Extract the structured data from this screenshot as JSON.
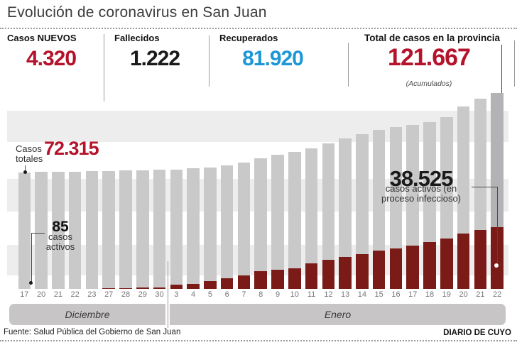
{
  "title": "Evolución de coronavirus en San Juan",
  "stats": [
    {
      "label": "Casos NUEVOS",
      "value": "4.320",
      "color": "#b5122b"
    },
    {
      "label": "Fallecidos",
      "value": "1.222",
      "color": "#1a1a1a"
    },
    {
      "label": "Recuperados",
      "value": "81.920",
      "color": "#1e97d6"
    },
    {
      "label": "Total de casos en la provincia",
      "value": "121.667",
      "note": "(Acumulados)",
      "color": "#b5122b"
    }
  ],
  "annotations": {
    "casos_totales": {
      "line1": "Casos",
      "line2": "totales",
      "value": "72.315"
    },
    "activos_first": {
      "value": "85",
      "line1": "casos",
      "line2": "activos"
    },
    "activos_last": {
      "value": "38.525",
      "line1": "casos activos (en",
      "line2": "proceso infeccioso)"
    }
  },
  "footer": {
    "source": "Fuente: Salud Pública del Gobierno de San Juan",
    "credit": "DIARIO DE CUYO"
  },
  "colors": {
    "accent_red": "#b5122b",
    "accent_blue": "#1e97d6",
    "bar_total": "#c9c9ca",
    "bar_total_highlight": "#b3b3b5",
    "bar_active": "#7b1b17",
    "stripe": "#ededee",
    "month_band": "#c7c5c5"
  },
  "chart_data": {
    "type": "bar",
    "title": "Evolución de coronavirus en San Juan",
    "x": [
      "17",
      "20",
      "21",
      "22",
      "23",
      "27",
      "28",
      "29",
      "30",
      "3",
      "4",
      "5",
      "6",
      "7",
      "8",
      "9",
      "10",
      "11",
      "12",
      "13",
      "14",
      "15",
      "16",
      "17",
      "18",
      "19",
      "20",
      "21",
      "22"
    ],
    "months": [
      {
        "label": "Diciembre",
        "start": 0,
        "count": 9
      },
      {
        "label": "Enero",
        "start": 9,
        "count": 20
      }
    ],
    "series": [
      {
        "name": "Casos totales",
        "values": [
          72315,
          72500,
          72650,
          72800,
          72950,
          73150,
          73350,
          73600,
          73850,
          74000,
          74700,
          75300,
          76700,
          78500,
          81100,
          83100,
          85000,
          87000,
          90400,
          93300,
          95800,
          98700,
          100300,
          101700,
          103600,
          106500,
          113100,
          117900,
          121667
        ]
      },
      {
        "name": "Casos activos (en proceso infeccioso)",
        "values": [
          85,
          100,
          120,
          150,
          200,
          400,
          500,
          700,
          800,
          2500,
          3200,
          4700,
          6400,
          8400,
          10800,
          12000,
          12800,
          15700,
          17900,
          19600,
          21600,
          23600,
          24900,
          27000,
          29100,
          31300,
          34300,
          36500,
          38525
        ]
      }
    ],
    "labeled_points": {
      "first_total": 72315,
      "first_active": 85,
      "last_total": 121667,
      "last_active": 38525
    },
    "ylim": [
      0,
      121667
    ],
    "grid": "horizontal-stripes",
    "legend": "none",
    "note": "values between labeled endpoints estimated from bar heights"
  }
}
